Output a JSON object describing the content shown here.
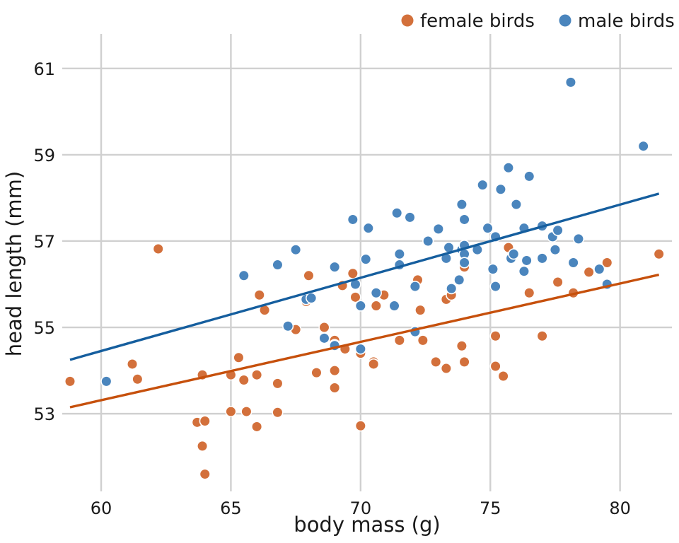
{
  "chart_data": {
    "type": "scatter",
    "xlabel": "body mass (g)",
    "ylabel": "head length (mm)",
    "xlim": [
      58.5,
      82
    ],
    "ylim": [
      51.2,
      61.8
    ],
    "x_ticks": [
      60,
      65,
      70,
      75,
      80
    ],
    "y_ticks": [
      53,
      55,
      57,
      59,
      61
    ],
    "grid": true,
    "legend_position": "top-right",
    "colors": {
      "female": "#D3703B",
      "male": "#4A85BD",
      "female_fit": "#C6500C",
      "male_fit": "#155E9E"
    },
    "series": [
      {
        "name": "female birds",
        "key": "female",
        "fit_line": [
          [
            58.8,
            53.15
          ],
          [
            81.5,
            56.22
          ]
        ],
        "points": [
          [
            58.8,
            53.75
          ],
          [
            61.2,
            54.15
          ],
          [
            61.4,
            53.8
          ],
          [
            62.2,
            56.82
          ],
          [
            63.7,
            52.8
          ],
          [
            63.9,
            53.9
          ],
          [
            63.9,
            52.25
          ],
          [
            64.0,
            52.83
          ],
          [
            64.0,
            51.6
          ],
          [
            65.0,
            53.05
          ],
          [
            65.0,
            53.9
          ],
          [
            65.3,
            54.3
          ],
          [
            65.5,
            53.78
          ],
          [
            65.6,
            53.05
          ],
          [
            66.0,
            53.9
          ],
          [
            66.0,
            52.7
          ],
          [
            66.1,
            55.75
          ],
          [
            66.3,
            55.4
          ],
          [
            66.8,
            53.7
          ],
          [
            66.8,
            53.03
          ],
          [
            67.5,
            54.95
          ],
          [
            67.9,
            55.6
          ],
          [
            68.0,
            56.2
          ],
          [
            68.3,
            53.95
          ],
          [
            68.6,
            55.0
          ],
          [
            69.0,
            53.6
          ],
          [
            69.0,
            54.0
          ],
          [
            69.0,
            54.7
          ],
          [
            69.0,
            54.6
          ],
          [
            69.3,
            55.97
          ],
          [
            69.4,
            54.5
          ],
          [
            69.7,
            56.25
          ],
          [
            69.8,
            55.7
          ],
          [
            70.0,
            54.4
          ],
          [
            70.0,
            52.72
          ],
          [
            70.5,
            54.2
          ],
          [
            70.5,
            54.15
          ],
          [
            70.6,
            55.5
          ],
          [
            70.9,
            55.75
          ],
          [
            71.5,
            54.7
          ],
          [
            72.2,
            56.1
          ],
          [
            72.3,
            55.4
          ],
          [
            72.4,
            54.7
          ],
          [
            72.9,
            54.2
          ],
          [
            73.3,
            54.05
          ],
          [
            73.3,
            55.65
          ],
          [
            73.5,
            55.75
          ],
          [
            73.9,
            54.57
          ],
          [
            74.0,
            56.4
          ],
          [
            74.0,
            54.2
          ],
          [
            75.2,
            54.1
          ],
          [
            75.2,
            54.8
          ],
          [
            75.5,
            53.87
          ],
          [
            75.7,
            56.85
          ],
          [
            76.5,
            55.8
          ],
          [
            77.0,
            54.8
          ],
          [
            77.6,
            56.05
          ],
          [
            78.2,
            55.8
          ],
          [
            78.8,
            56.28
          ],
          [
            79.5,
            56.5
          ],
          [
            81.5,
            56.7
          ]
        ]
      },
      {
        "name": "male birds",
        "key": "male",
        "fit_line": [
          [
            58.8,
            54.25
          ],
          [
            81.5,
            58.1
          ]
        ],
        "points": [
          [
            60.2,
            53.75
          ],
          [
            65.5,
            56.2
          ],
          [
            66.8,
            56.45
          ],
          [
            67.2,
            55.03
          ],
          [
            67.5,
            56.8
          ],
          [
            67.9,
            55.65
          ],
          [
            68.1,
            55.68
          ],
          [
            68.6,
            54.75
          ],
          [
            69.0,
            56.4
          ],
          [
            69.0,
            54.58
          ],
          [
            69.7,
            57.5
          ],
          [
            69.8,
            56.0
          ],
          [
            70.0,
            55.5
          ],
          [
            70.0,
            54.5
          ],
          [
            70.2,
            56.58
          ],
          [
            70.3,
            57.3
          ],
          [
            70.6,
            55.8
          ],
          [
            71.3,
            55.5
          ],
          [
            71.4,
            57.65
          ],
          [
            71.5,
            56.7
          ],
          [
            71.5,
            56.45
          ],
          [
            71.9,
            57.55
          ],
          [
            72.1,
            55.95
          ],
          [
            72.1,
            54.9
          ],
          [
            72.6,
            57.0
          ],
          [
            73.0,
            57.28
          ],
          [
            73.3,
            56.6
          ],
          [
            73.4,
            56.85
          ],
          [
            73.5,
            55.9
          ],
          [
            73.8,
            56.1
          ],
          [
            73.9,
            56.8
          ],
          [
            73.9,
            57.85
          ],
          [
            74.0,
            57.5
          ],
          [
            74.0,
            56.9
          ],
          [
            74.0,
            56.7
          ],
          [
            74.0,
            56.5
          ],
          [
            74.5,
            56.8
          ],
          [
            74.7,
            58.3
          ],
          [
            74.9,
            57.3
          ],
          [
            75.1,
            56.35
          ],
          [
            75.2,
            55.95
          ],
          [
            75.2,
            57.1
          ],
          [
            75.4,
            58.2
          ],
          [
            75.7,
            58.7
          ],
          [
            75.8,
            56.6
          ],
          [
            75.9,
            56.7
          ],
          [
            76.0,
            57.85
          ],
          [
            76.3,
            56.3
          ],
          [
            76.3,
            57.3
          ],
          [
            76.4,
            56.55
          ],
          [
            76.5,
            58.5
          ],
          [
            77.0,
            57.35
          ],
          [
            77.0,
            56.6
          ],
          [
            77.4,
            57.1
          ],
          [
            77.5,
            56.8
          ],
          [
            77.6,
            57.25
          ],
          [
            78.1,
            60.68
          ],
          [
            78.2,
            56.5
          ],
          [
            78.4,
            57.05
          ],
          [
            79.2,
            56.35
          ],
          [
            79.5,
            56.0
          ],
          [
            80.9,
            59.2
          ]
        ]
      }
    ]
  }
}
